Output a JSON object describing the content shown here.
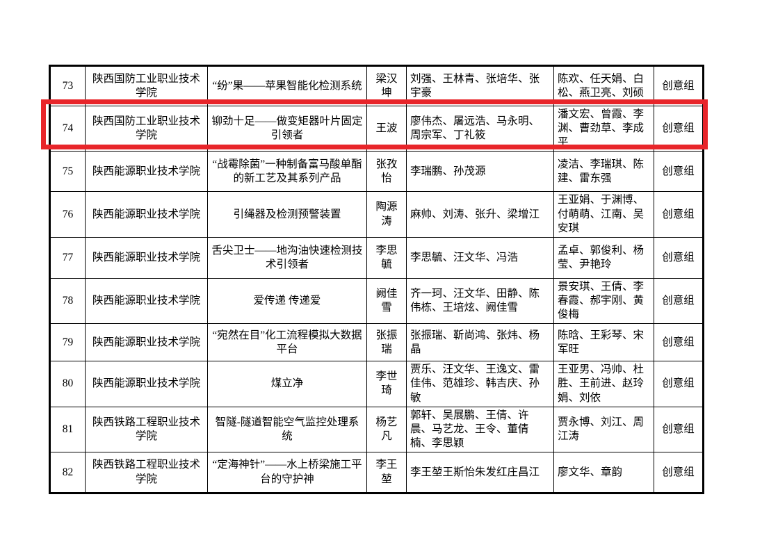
{
  "table": {
    "rows": [
      {
        "no": "73",
        "school": "陕西国防工业职业技术学院",
        "project": "“纷”果——苹果智能化检测系统",
        "leader": "梁汉坤",
        "members": "刘强、王林青、张培华、张宇豪",
        "advisors": "陈欢、任天娟、白松、燕卫亮、刘硕",
        "group": "创意组"
      },
      {
        "no": "74",
        "school": "陕西国防工业职业技术学院",
        "project": "铆劲十足——做变矩器叶片固定引领者",
        "leader": "王波",
        "members": "廖伟杰、屠远浩、马永明、周宗军、丁礼筱",
        "advisors": "潘文宏、曾霞、李渊、曹劲草、李成平",
        "group": "创意组"
      },
      {
        "no": "75",
        "school": "陕西能源职业技术学院",
        "project": "“战霉除菌”一种制备富马酸单酯的新工艺及其系列产品",
        "leader": "张孜怡",
        "members": "李瑞鹏、孙茂源",
        "advisors": "凌洁、李瑞琪、陈建、雷东强",
        "group": "创意组"
      },
      {
        "no": "76",
        "school": "陕西能源职业技术学院",
        "project": "引绳器及检测预警装置",
        "leader": "陶源涛",
        "members": "麻帅、刘涛、张升、梁增江",
        "advisors": "王亚娟、于渊博、付萌萌、江南、吴安琪",
        "group": "创意组"
      },
      {
        "no": "77",
        "school": "陕西能源职业技术学院",
        "project": "舌尖卫士——地沟油快速检测技术引领者",
        "leader": "李思毓",
        "members": "李思毓、汪文华、冯浩",
        "advisors": "孟卓、郭俊利、杨莹、尹艳玲",
        "group": "创意组"
      },
      {
        "no": "78",
        "school": "陕西能源职业技术学院",
        "project": "爱传递 传递爱",
        "leader": "阙佳雪",
        "members": "齐一珂、汪文华、田静、陈伟栋、王培炫、阙佳雪",
        "advisors": "景安琪、王倩、李春霞、郝宇刚、黄俊梅",
        "group": "创意组"
      },
      {
        "no": "79",
        "school": "陕西能源职业技术学院",
        "project": "“宛然在目”化工流程模拟大数据平台",
        "leader": "张振瑞",
        "members": "张振瑞、靳尚鸿、张炜、杨晶",
        "advisors": "陈晗、王彩琴、宋军旺",
        "group": "创意组"
      },
      {
        "no": "80",
        "school": "陕西能源职业技术学院",
        "project": "煤立净",
        "leader": "李世琦",
        "members": "贾乐、汪文华、王逸文、雷佳伟、范雄珍、韩吉庆、孙敏",
        "advisors": "王亚男、冯帅、杜胜、王前进、赵玲娟、刘依",
        "group": "创意组"
      },
      {
        "no": "81",
        "school": "陕西铁路工程职业技术学院",
        "project": "智隧-隧道智能空气监控处理系统",
        "leader": "杨艺凡",
        "members": "郭轩、吴展鹏、王倩、许晨、马艺龙、王令、董倩楠、李思颖",
        "advisors": "贾永博、刘江、周江涛",
        "group": "创意组"
      },
      {
        "no": "82",
        "school": "陕西铁路工程职业技术学院",
        "project": "“定海神针”——水上桥梁施工平台的守护神",
        "leader": "李王堃",
        "members": "李王堃王斯怡朱发红庄昌江",
        "advisors": "廖文华、章韵",
        "group": "创意组"
      }
    ]
  },
  "highlight": {
    "row_number": "74",
    "color": "#e8252a"
  }
}
